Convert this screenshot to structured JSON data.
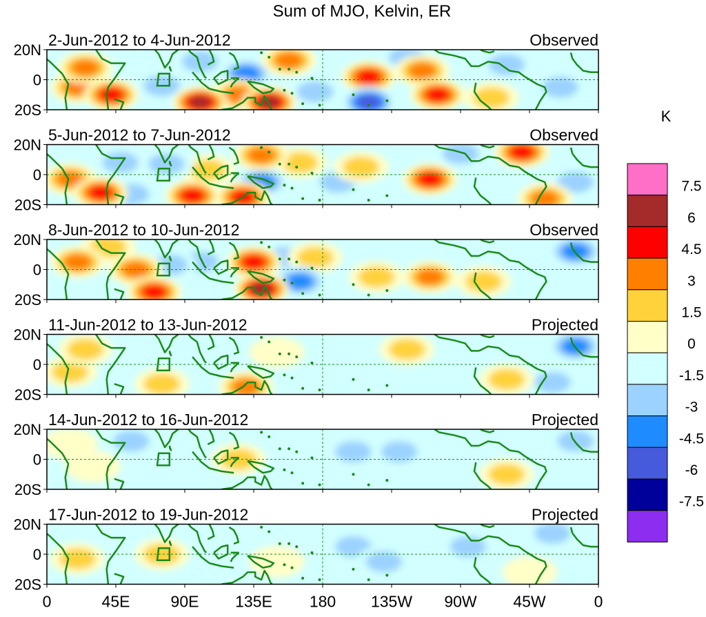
{
  "chart_data": {
    "type": "heatmap",
    "title": "Sum of MJO, Kelvin, ER",
    "units": "K",
    "x_ticks": [
      "0",
      "45E",
      "90E",
      "135E",
      "180",
      "135W",
      "90W",
      "45W",
      "0"
    ],
    "y_ticks": [
      "20N",
      "0",
      "20S"
    ],
    "colorbar_labels": [
      "7.5",
      "6",
      "4.5",
      "3",
      "1.5",
      "0",
      "-1.5",
      "-3",
      "-4.5",
      "-6",
      "-7.5"
    ],
    "colorbar_colors": [
      "#ff6ec7",
      "#a52a2a",
      "#ff0000",
      "#ff7f00",
      "#ffd23c",
      "#ffffc8",
      "#d2ffff",
      "#9bd2ff",
      "#1e8cff",
      "#465adc",
      "#00009b",
      "#8c2df0"
    ],
    "panels": [
      {
        "dates": "2-Jun-2012 to 4-Jun-2012",
        "status": "Observed"
      },
      {
        "dates": "5-Jun-2012 to 7-Jun-2012",
        "status": "Observed"
      },
      {
        "dates": "8-Jun-2012 to 10-Jun-2012",
        "status": "Observed"
      },
      {
        "dates": "11-Jun-2012 to 13-Jun-2012",
        "status": "Projected"
      },
      {
        "dates": "14-Jun-2012 to 16-Jun-2012",
        "status": "Projected"
      },
      {
        "dates": "17-Jun-2012 to 19-Jun-2012",
        "status": "Projected"
      }
    ],
    "anomalies": [
      [
        {
          "lon": 25,
          "lat": 8,
          "v": 4.5
        },
        {
          "lon": 42,
          "lat": -10,
          "v": 6
        },
        {
          "lon": 20,
          "lat": -5,
          "v": 3.5
        },
        {
          "lon": 75,
          "lat": -4,
          "v": -3
        },
        {
          "lon": 100,
          "lat": -15,
          "v": 7
        },
        {
          "lon": 145,
          "lat": -15,
          "v": 7.5
        },
        {
          "lon": 130,
          "lat": 4,
          "v": -4
        },
        {
          "lon": 125,
          "lat": -10,
          "v": 4
        },
        {
          "lon": 100,
          "lat": 12,
          "v": -2
        },
        {
          "lon": 158,
          "lat": 13,
          "v": 4.5
        },
        {
          "lon": 210,
          "lat": 2,
          "v": 5
        },
        {
          "lon": 245,
          "lat": 6,
          "v": 4
        },
        {
          "lon": 255,
          "lat": -10,
          "v": 5
        },
        {
          "lon": 210,
          "lat": -15,
          "v": -6
        },
        {
          "lon": 175,
          "lat": -8,
          "v": -2
        },
        {
          "lon": 290,
          "lat": -12,
          "v": 3
        },
        {
          "lon": 300,
          "lat": 10,
          "v": -2.5
        },
        {
          "lon": 335,
          "lat": -5,
          "v": -2
        },
        {
          "lon": 60,
          "lat": 10,
          "v": -1.5
        },
        {
          "lon": 235,
          "lat": 15,
          "v": -2
        }
      ],
      [
        {
          "lon": 15,
          "lat": -3,
          "v": 4
        },
        {
          "lon": 35,
          "lat": -12,
          "v": 5
        },
        {
          "lon": 55,
          "lat": -13,
          "v": -3
        },
        {
          "lon": 48,
          "lat": 8,
          "v": -2
        },
        {
          "lon": 78,
          "lat": 7,
          "v": -2.5
        },
        {
          "lon": 95,
          "lat": -14,
          "v": 5
        },
        {
          "lon": 140,
          "lat": 13,
          "v": 4.5
        },
        {
          "lon": 140,
          "lat": -5,
          "v": -4
        },
        {
          "lon": 128,
          "lat": -15,
          "v": 5.5
        },
        {
          "lon": 105,
          "lat": 3,
          "v": 2
        },
        {
          "lon": 165,
          "lat": 8,
          "v": 3
        },
        {
          "lon": 190,
          "lat": -5,
          "v": -2
        },
        {
          "lon": 205,
          "lat": 5,
          "v": 3
        },
        {
          "lon": 250,
          "lat": -3,
          "v": 6
        },
        {
          "lon": 270,
          "lat": 14,
          "v": -3
        },
        {
          "lon": 310,
          "lat": 15,
          "v": 5
        },
        {
          "lon": 325,
          "lat": -16,
          "v": 4.5
        },
        {
          "lon": 295,
          "lat": -5,
          "v": -1.5
        },
        {
          "lon": 345,
          "lat": -5,
          "v": -3
        }
      ],
      [
        {
          "lon": 20,
          "lat": 5,
          "v": 4
        },
        {
          "lon": 40,
          "lat": 15,
          "v": 3
        },
        {
          "lon": 70,
          "lat": -15,
          "v": 5.5
        },
        {
          "lon": 58,
          "lat": 0,
          "v": 3.5
        },
        {
          "lon": 80,
          "lat": 3,
          "v": -3
        },
        {
          "lon": 100,
          "lat": 5,
          "v": -2
        },
        {
          "lon": 135,
          "lat": 5,
          "v": 5
        },
        {
          "lon": 140,
          "lat": -13,
          "v": 7.5
        },
        {
          "lon": 165,
          "lat": -8,
          "v": -3.5
        },
        {
          "lon": 155,
          "lat": 8,
          "v": -2
        },
        {
          "lon": 175,
          "lat": 8,
          "v": 3
        },
        {
          "lon": 215,
          "lat": -5,
          "v": 2.5
        },
        {
          "lon": 250,
          "lat": -5,
          "v": 4
        },
        {
          "lon": 285,
          "lat": -8,
          "v": 2
        },
        {
          "lon": 345,
          "lat": 12,
          "v": -4
        },
        {
          "lon": 340,
          "lat": -12,
          "v": -1.5
        },
        {
          "lon": 305,
          "lat": 8,
          "v": -1.5
        }
      ],
      [
        {
          "lon": 25,
          "lat": 10,
          "v": 3
        },
        {
          "lon": 15,
          "lat": -5,
          "v": 2
        },
        {
          "lon": 55,
          "lat": 10,
          "v": -1.5
        },
        {
          "lon": 75,
          "lat": -13,
          "v": 2
        },
        {
          "lon": 105,
          "lat": 8,
          "v": -1.5
        },
        {
          "lon": 130,
          "lat": -15,
          "v": 3.5
        },
        {
          "lon": 150,
          "lat": 8,
          "v": 1.5
        },
        {
          "lon": 235,
          "lat": 10,
          "v": 2
        },
        {
          "lon": 300,
          "lat": -10,
          "v": 3
        },
        {
          "lon": 345,
          "lat": 12,
          "v": -3.5
        },
        {
          "lon": 330,
          "lat": -12,
          "v": -2.5
        },
        {
          "lon": 195,
          "lat": -5,
          "v": -1.5
        }
      ],
      [
        {
          "lon": 30,
          "lat": -5,
          "v": 1.5
        },
        {
          "lon": 55,
          "lat": 12,
          "v": -2
        },
        {
          "lon": 95,
          "lat": 10,
          "v": -1.5
        },
        {
          "lon": 125,
          "lat": 0,
          "v": 2
        },
        {
          "lon": 150,
          "lat": -8,
          "v": -1.5
        },
        {
          "lon": 200,
          "lat": 5,
          "v": -2
        },
        {
          "lon": 230,
          "lat": 5,
          "v": -2
        },
        {
          "lon": 300,
          "lat": -10,
          "v": 2.5
        },
        {
          "lon": 345,
          "lat": 12,
          "v": -3
        },
        {
          "lon": 15,
          "lat": 10,
          "v": 1.5
        },
        {
          "lon": 320,
          "lat": 8,
          "v": -1.5
        }
      ],
      [
        {
          "lon": 20,
          "lat": -3,
          "v": 2
        },
        {
          "lon": 75,
          "lat": 0,
          "v": 2.5
        },
        {
          "lon": 65,
          "lat": 12,
          "v": -1.5
        },
        {
          "lon": 115,
          "lat": 10,
          "v": -1.5
        },
        {
          "lon": 200,
          "lat": 5,
          "v": -2
        },
        {
          "lon": 220,
          "lat": -5,
          "v": -3
        },
        {
          "lon": 275,
          "lat": 5,
          "v": -2
        },
        {
          "lon": 330,
          "lat": 14,
          "v": -3
        },
        {
          "lon": 315,
          "lat": -12,
          "v": 1.5
        },
        {
          "lon": 150,
          "lat": -5,
          "v": 1.5
        }
      ]
    ]
  }
}
